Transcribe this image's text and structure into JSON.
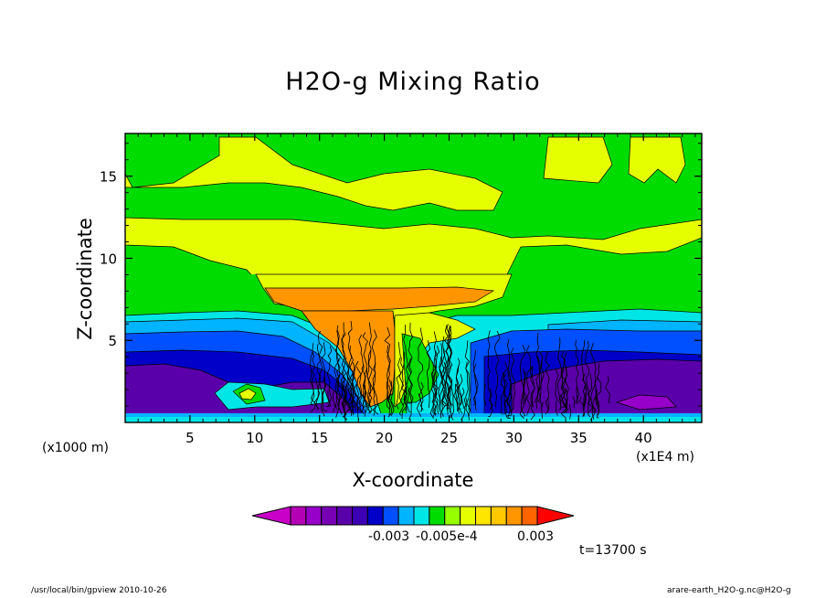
{
  "title": "H2O-g Mixing Ratio",
  "footer_left": "/usr/local/bin/gpview  2010-10-26",
  "footer_right": "arare-earth_H2O-g.nc@H2O-g",
  "time_label": "t=13700 s",
  "chart_data": {
    "type": "heatmap",
    "title": "H2O-g Mixing Ratio",
    "xlabel": "X-coordinate",
    "ylabel": "Z-coordinate",
    "x_unit_left": "(x1000 m)",
    "x_unit_right": "(x1E4 m)",
    "xlim": [
      0,
      44.5
    ],
    "ylim": [
      0,
      17.6
    ],
    "x_ticks": [
      "5",
      "10",
      "15",
      "20",
      "25",
      "30",
      "35",
      "40"
    ],
    "x_tick_values": [
      5,
      10,
      15,
      20,
      25,
      30,
      35,
      40
    ],
    "y_ticks": [
      "5",
      "10",
      "15"
    ],
    "y_tick_values": [
      5,
      10,
      15
    ],
    "colorbar": {
      "colors": [
        "#c800c8",
        "#b400b4",
        "#9600c8",
        "#7800b4",
        "#5a00aa",
        "#3c00b4",
        "#0000c8",
        "#0050ff",
        "#00b4ff",
        "#00e6e6",
        "#00dc00",
        "#96ff00",
        "#e6ff00",
        "#ffe600",
        "#ffc800",
        "#ff9600",
        "#ff6400",
        "#ff0000"
      ],
      "labels": [
        "-0.003",
        "-0.005e-4",
        "0.003"
      ]
    },
    "note_colorbar_labels_as_printed": "-0.003-0.005e-4  0.003"
  }
}
